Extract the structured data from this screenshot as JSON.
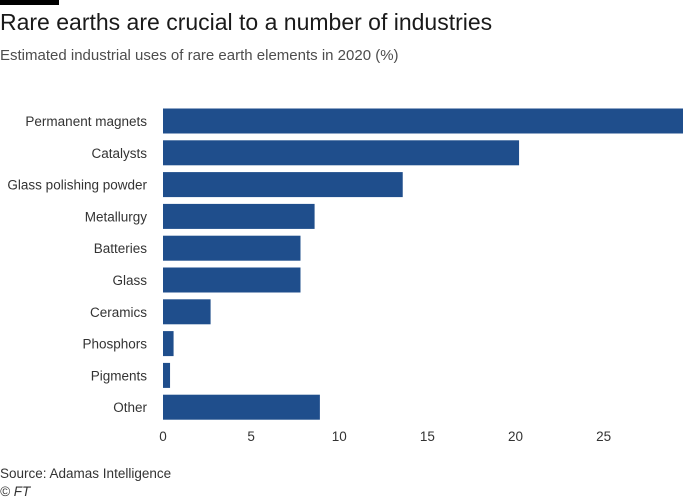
{
  "chart_data": {
    "type": "bar",
    "orientation": "horizontal",
    "title": "Rare earths are crucial to a number of industries",
    "subtitle": "Estimated industrial uses of rare earth elements in 2020 (%)",
    "categories": [
      "Permanent magnets",
      "Catalysts",
      "Glass polishing powder",
      "Metallurgy",
      "Batteries",
      "Glass",
      "Ceramics",
      "Phosphors",
      "Pigments",
      "Other"
    ],
    "values": [
      29.5,
      20.2,
      13.6,
      8.6,
      7.8,
      7.8,
      2.7,
      0.6,
      0.4,
      8.9
    ],
    "xlim": [
      0,
      29.5
    ],
    "xticks": [
      0,
      5,
      10,
      15,
      20,
      25
    ],
    "xlabel": "",
    "ylabel": "",
    "grid": false,
    "bar_color": "#1f4e8c"
  },
  "footer": {
    "source": "Source: Adamas Intelligence",
    "credit": "© FT"
  }
}
